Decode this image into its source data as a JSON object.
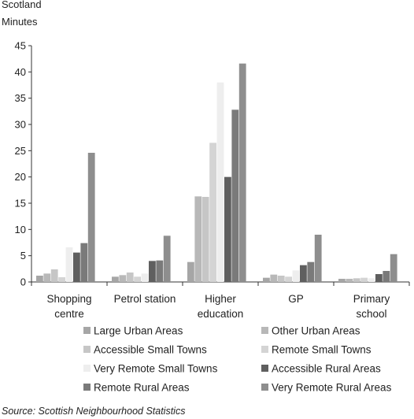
{
  "chart_data": {
    "type": "bar",
    "title": "Scotland",
    "ylabel": "Minutes",
    "ylim": [
      0,
      45
    ],
    "yticks": [
      0,
      5,
      10,
      15,
      20,
      25,
      30,
      35,
      40,
      45
    ],
    "grid": false,
    "legend_position": "bottom",
    "categories": [
      "Shopping centre",
      "Petrol station",
      "Higher education",
      "GP",
      "Primary school"
    ],
    "series": [
      {
        "name": "Large Urban Areas",
        "color": "#a6a6a6",
        "values": [
          1.2,
          1.0,
          3.8,
          0.8,
          0.6
        ]
      },
      {
        "name": "Other Urban Areas",
        "color": "#b8b8b8",
        "values": [
          1.6,
          1.3,
          16.3,
          1.4,
          0.6
        ]
      },
      {
        "name": "Accessible Small Towns",
        "color": "#c6c6c6",
        "values": [
          2.4,
          1.8,
          16.2,
          1.2,
          0.7
        ]
      },
      {
        "name": "Remote Small Towns",
        "color": "#d4d4d4",
        "values": [
          0.9,
          1.0,
          26.5,
          1.0,
          0.8
        ]
      },
      {
        "name": "Very Remote Small Towns",
        "color": "#eeeeee",
        "values": [
          6.6,
          1.6,
          38.0,
          2.2,
          0.7
        ]
      },
      {
        "name": "Accessible Rural Areas",
        "color": "#5f5f5f",
        "values": [
          5.6,
          4.0,
          20.0,
          3.2,
          1.5
        ]
      },
      {
        "name": "Remote Rural Areas",
        "color": "#7a7a7a",
        "values": [
          7.4,
          4.1,
          32.8,
          3.8,
          2.1
        ]
      },
      {
        "name": "Very Remote Rural Areas",
        "color": "#8e8e8e",
        "values": [
          24.6,
          8.8,
          41.6,
          9.0,
          5.3
        ]
      }
    ]
  },
  "source_text": "Source: Scottish Neighbourhood Statistics"
}
